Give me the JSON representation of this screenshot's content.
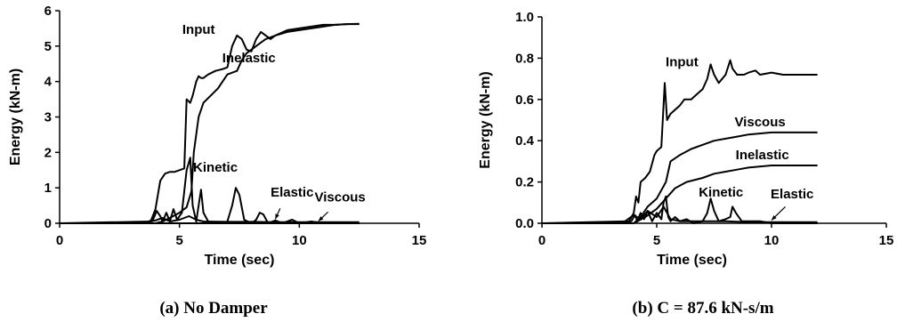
{
  "chart_data": [
    {
      "type": "line",
      "caption": "(a) No Damper",
      "xlabel": "Time (sec)",
      "ylabel": "Energy (kN-m)",
      "xlim": [
        0,
        15
      ],
      "ylim": [
        0,
        6
      ],
      "xticks": [
        0,
        5,
        10,
        15
      ],
      "yticks": [
        0,
        1,
        2,
        3,
        4,
        5,
        6
      ],
      "grid": false,
      "series": [
        {
          "name": "Input",
          "x": [
            0,
            3.8,
            4.0,
            4.2,
            4.4,
            4.6,
            4.8,
            5.0,
            5.2,
            5.3,
            5.45,
            5.55,
            5.7,
            5.8,
            5.9,
            6.0,
            6.2,
            6.5,
            6.8,
            7.0,
            7.2,
            7.4,
            7.6,
            7.8,
            8.0,
            8.2,
            8.4,
            8.6,
            8.8,
            9.0,
            9.5,
            10,
            10.5,
            11,
            11.5,
            12,
            12.5
          ],
          "y": [
            0,
            0.05,
            0.4,
            1.2,
            1.4,
            1.45,
            1.45,
            1.5,
            1.55,
            3.5,
            3.4,
            3.6,
            4.0,
            4.15,
            4.1,
            4.1,
            4.2,
            4.3,
            4.35,
            4.4,
            5.0,
            5.3,
            5.2,
            4.9,
            4.85,
            5.2,
            5.4,
            5.3,
            5.2,
            5.3,
            5.45,
            5.5,
            5.55,
            5.6,
            5.6,
            5.62,
            5.62
          ]
        },
        {
          "name": "Inelastic",
          "x": [
            0,
            4.0,
            4.3,
            4.6,
            5.0,
            5.3,
            5.5,
            5.6,
            5.8,
            6.0,
            6.3,
            6.6,
            7.0,
            7.4,
            7.6,
            7.8,
            8.0,
            8.2,
            8.4,
            8.6,
            9.0,
            9.5,
            10,
            10.5,
            11,
            11.5,
            12,
            12.5
          ],
          "y": [
            0,
            0,
            0.05,
            0.15,
            0.3,
            0.45,
            0.9,
            2.0,
            3.0,
            3.4,
            3.6,
            3.8,
            4.2,
            4.3,
            4.6,
            4.8,
            4.9,
            5.0,
            5.1,
            5.2,
            5.3,
            5.4,
            5.45,
            5.5,
            5.55,
            5.6,
            5.62,
            5.63
          ]
        },
        {
          "name": "Kinetic",
          "x": [
            3.5,
            3.9,
            4.05,
            4.2,
            4.3,
            4.45,
            4.6,
            4.75,
            4.9,
            5.1,
            5.3,
            5.45,
            5.55,
            5.7,
            5.8,
            5.9,
            6.0,
            6.2,
            6.5,
            6.8,
            7.0,
            7.2,
            7.35,
            7.5,
            7.7,
            8.0,
            8.2,
            8.35,
            8.5,
            8.7,
            9.0,
            9.3,
            9.7,
            10,
            10.5,
            11,
            12.5
          ],
          "y": [
            0,
            0.1,
            0.35,
            0.2,
            0.05,
            0.3,
            0.05,
            0.4,
            0.1,
            0.3,
            1.5,
            1.85,
            0.5,
            0.05,
            0.5,
            0.95,
            0.3,
            0.05,
            0,
            0,
            0.05,
            0.5,
            1.0,
            0.8,
            0.1,
            0,
            0.1,
            0.3,
            0.25,
            0,
            0.08,
            0,
            0.1,
            0,
            0.05,
            0,
            0
          ]
        },
        {
          "name": "Elastic",
          "x": [
            3.5,
            4.0,
            4.3,
            4.6,
            5.0,
            5.4,
            5.7,
            6.0,
            7.0,
            8.0,
            9.0,
            10,
            11,
            12.5
          ],
          "y": [
            0,
            0.08,
            0.15,
            0.05,
            0.1,
            0.2,
            0.1,
            0.05,
            0.04,
            0.04,
            0.03,
            0.03,
            0.03,
            0.03
          ]
        },
        {
          "name": "Viscous",
          "x": [
            0,
            12.5
          ],
          "y": [
            0,
            0
          ]
        }
      ],
      "annotations": [
        {
          "text": "Input",
          "x": 5.8,
          "y": 5.35
        },
        {
          "text": "Inelastic",
          "x": 7.9,
          "y": 4.55
        },
        {
          "text": "Kinetic",
          "x": 6.5,
          "y": 1.45
        },
        {
          "text": "Elastic",
          "x": 9.7,
          "y": 0.75
        },
        {
          "text": "Viscous",
          "x": 11.7,
          "y": 0.62
        }
      ]
    },
    {
      "type": "line",
      "caption": "(b) C = 87.6 kN-s/m",
      "xlabel": "Time (sec)",
      "ylabel": "Energy (kN-m)",
      "xlim": [
        0,
        15
      ],
      "ylim": [
        0,
        1.0
      ],
      "xticks": [
        0,
        5,
        10,
        15
      ],
      "yticks": [
        0.0,
        0.2,
        0.4,
        0.6,
        0.8,
        1.0
      ],
      "grid": false,
      "series": [
        {
          "name": "Input",
          "x": [
            0,
            3.8,
            4.0,
            4.1,
            4.2,
            4.3,
            4.5,
            4.7,
            4.9,
            5.0,
            5.2,
            5.35,
            5.45,
            5.6,
            5.8,
            6.0,
            6.2,
            6.5,
            6.8,
            7.0,
            7.2,
            7.35,
            7.5,
            7.7,
            8.0,
            8.2,
            8.3,
            8.5,
            8.8,
            9.0,
            9.3,
            9.5,
            10,
            10.5,
            11,
            11.5,
            12
          ],
          "y": [
            0,
            0.01,
            0.05,
            0.13,
            0.1,
            0.2,
            0.22,
            0.25,
            0.33,
            0.35,
            0.37,
            0.68,
            0.5,
            0.53,
            0.55,
            0.57,
            0.6,
            0.6,
            0.63,
            0.65,
            0.7,
            0.77,
            0.72,
            0.68,
            0.72,
            0.79,
            0.75,
            0.72,
            0.72,
            0.73,
            0.74,
            0.72,
            0.73,
            0.72,
            0.72,
            0.72,
            0.72
          ]
        },
        {
          "name": "Viscous",
          "x": [
            0,
            4.0,
            4.3,
            4.6,
            5.0,
            5.4,
            5.6,
            6.0,
            6.5,
            7.0,
            7.5,
            8.0,
            8.5,
            9.0,
            10,
            11,
            12
          ],
          "y": [
            0,
            0,
            0.03,
            0.08,
            0.12,
            0.2,
            0.3,
            0.33,
            0.36,
            0.38,
            0.4,
            0.41,
            0.42,
            0.43,
            0.44,
            0.44,
            0.44
          ]
        },
        {
          "name": "Inelastic",
          "x": [
            0,
            4.0,
            4.5,
            5.0,
            5.4,
            5.8,
            6.3,
            7.0,
            7.5,
            8.0,
            8.5,
            9.0,
            10,
            11,
            12
          ],
          "y": [
            0,
            0,
            0.03,
            0.07,
            0.12,
            0.17,
            0.2,
            0.22,
            0.24,
            0.25,
            0.26,
            0.27,
            0.28,
            0.28,
            0.28
          ]
        },
        {
          "name": "Kinetic",
          "x": [
            3.5,
            3.9,
            4.05,
            4.15,
            4.3,
            4.45,
            4.6,
            4.8,
            5.0,
            5.2,
            5.3,
            5.4,
            5.5,
            5.6,
            5.8,
            6.0,
            6.3,
            6.6,
            7.0,
            7.2,
            7.35,
            7.5,
            7.7,
            8.0,
            8.2,
            8.3,
            8.45,
            8.7,
            9.0,
            9.5,
            10,
            12
          ],
          "y": [
            0,
            0.01,
            0.04,
            0.01,
            0.05,
            0.02,
            0.06,
            0.01,
            0.05,
            0.02,
            0.1,
            0.13,
            0.03,
            0.01,
            0.03,
            0.01,
            0.02,
            0,
            0.01,
            0.05,
            0.12,
            0.06,
            0.01,
            0.02,
            0.03,
            0.08,
            0.05,
            0.01,
            0.01,
            0.01,
            0,
            0
          ]
        },
        {
          "name": "Elastic",
          "x": [
            3.5,
            4.0,
            4.3,
            4.6,
            5.0,
            5.3,
            5.6,
            6.0,
            7.0,
            8.0,
            9.0,
            10,
            12
          ],
          "y": [
            0,
            0.04,
            0.02,
            0.06,
            0.03,
            0.08,
            0.02,
            0.01,
            0.01,
            0.01,
            0.005,
            0.005,
            0.005
          ]
        }
      ],
      "annotations": [
        {
          "text": "Input",
          "x": 6.1,
          "y": 0.76
        },
        {
          "text": "Viscous",
          "x": 9.5,
          "y": 0.47
        },
        {
          "text": "Inelastic",
          "x": 9.6,
          "y": 0.31
        },
        {
          "text": "Kinetic",
          "x": 7.8,
          "y": 0.13
        },
        {
          "text": "Elastic",
          "x": 10.9,
          "y": 0.12
        }
      ]
    }
  ]
}
